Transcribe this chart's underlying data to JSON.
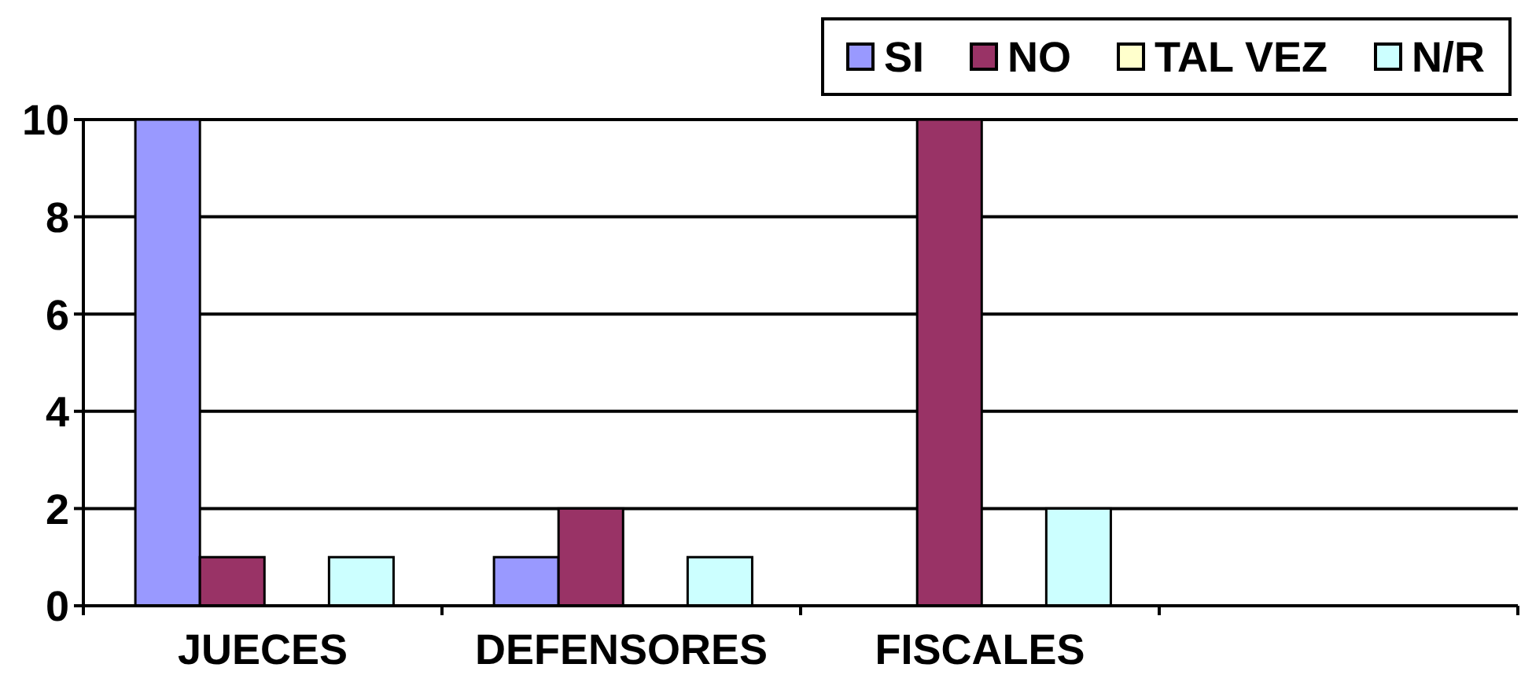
{
  "chart_data": {
    "type": "bar",
    "categories": [
      "JUECES",
      "DEFENSORES",
      "FISCALES",
      null
    ],
    "series": [
      {
        "name": "SI",
        "color": "#9999ff",
        "values": [
          10,
          1,
          0,
          null
        ]
      },
      {
        "name": "NO",
        "color": "#993366",
        "values": [
          1,
          2,
          10,
          null
        ]
      },
      {
        "name": "TAL VEZ",
        "color": "#ffffcc",
        "values": [
          0,
          0,
          0,
          null
        ]
      },
      {
        "name": "N/R",
        "color": "#ccffff",
        "values": [
          1,
          1,
          2,
          null
        ]
      }
    ],
    "ylim": [
      0,
      10
    ],
    "yticks": [
      0,
      2,
      4,
      6,
      8,
      10
    ],
    "grid": "y",
    "legend": "top right"
  }
}
